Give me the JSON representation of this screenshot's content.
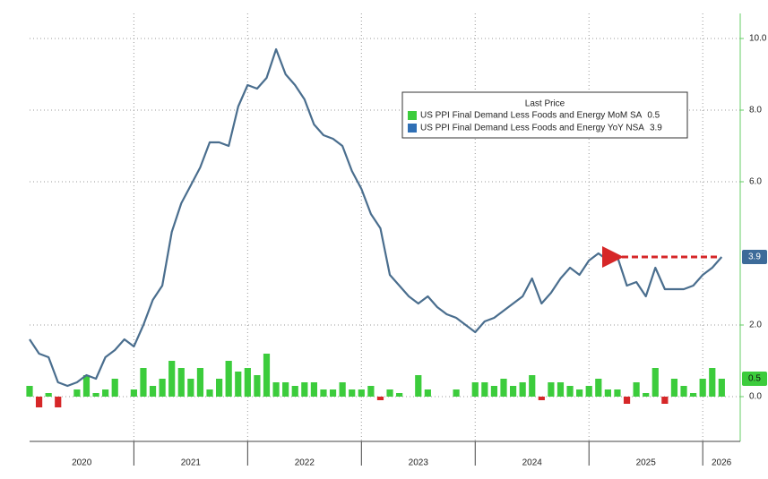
{
  "chart_data": {
    "type": "combo",
    "legend_title": "Last Price",
    "legend": "top-right",
    "grid": true,
    "x_labels": [
      "2020",
      "2021",
      "2022",
      "2023",
      "2024",
      "2025",
      "2026"
    ],
    "ylim": [
      -1.25,
      10.7
    ],
    "yticks": [
      {
        "value": 0,
        "label": "0.0"
      },
      {
        "value": 2,
        "label": "2.0"
      },
      {
        "value": 6,
        "label": "6.0"
      },
      {
        "value": 8,
        "label": "8.0"
      },
      {
        "value": 10,
        "label": "10.0"
      }
    ],
    "series": [
      {
        "name": "US PPI Final Demand Less Foods and Energy MoM SA",
        "type": "bar",
        "color": "#3ccc3c",
        "negative_color": "#d62728",
        "last_price": 0.5,
        "values": [
          0.3,
          -0.3,
          0.1,
          -0.3,
          0,
          0.2,
          0.6,
          0.1,
          0.2,
          0.5,
          0,
          0.2,
          0.8,
          0.3,
          0.5,
          1.0,
          0.8,
          0.5,
          0.8,
          0.2,
          0.5,
          1.0,
          0.7,
          0.8,
          0.6,
          1.2,
          0.4,
          0.4,
          0.3,
          0.4,
          0.4,
          0.2,
          0.2,
          0.4,
          0.2,
          0.2,
          0.3,
          -0.1,
          0.2,
          0.1,
          0,
          0.6,
          0.2,
          0,
          0,
          0.2,
          0,
          0.4,
          0.4,
          0.3,
          0.5,
          0.3,
          0.4,
          0.6,
          -0.1,
          0.4,
          0.4,
          0.3,
          0.2,
          0.3,
          0.5,
          0.2,
          0.2,
          -0.2,
          0.4,
          0.1,
          0.8,
          -0.2,
          0.5,
          0.3,
          0.1,
          0.5,
          0.8,
          0.5
        ]
      },
      {
        "name": "US PPI Final Demand Less Foods and Energy YoY NSA",
        "type": "line",
        "color": "#4a6e8e",
        "legend_color": "#2f6fb5",
        "last_price": 3.9,
        "values": [
          1.6,
          1.2,
          1.1,
          0.4,
          0.3,
          0.4,
          0.6,
          0.5,
          1.1,
          1.3,
          1.6,
          1.4,
          2.0,
          2.7,
          3.1,
          4.6,
          5.4,
          5.9,
          6.4,
          7.1,
          7.1,
          7.0,
          8.1,
          8.7,
          8.6,
          8.9,
          9.7,
          9.0,
          8.7,
          8.3,
          7.6,
          7.3,
          7.2,
          7.0,
          6.3,
          5.8,
          5.1,
          4.7,
          3.4,
          3.1,
          2.8,
          2.6,
          2.8,
          2.5,
          2.3,
          2.2,
          2.0,
          1.8,
          2.1,
          2.2,
          2.4,
          2.6,
          2.8,
          3.3,
          2.6,
          2.9,
          3.3,
          3.6,
          3.4,
          3.8,
          4.0,
          3.8,
          3.9,
          3.1,
          3.2,
          2.8,
          3.6,
          3.0,
          3.0,
          3.0,
          3.1,
          3.4,
          3.6,
          3.9
        ]
      }
    ]
  }
}
